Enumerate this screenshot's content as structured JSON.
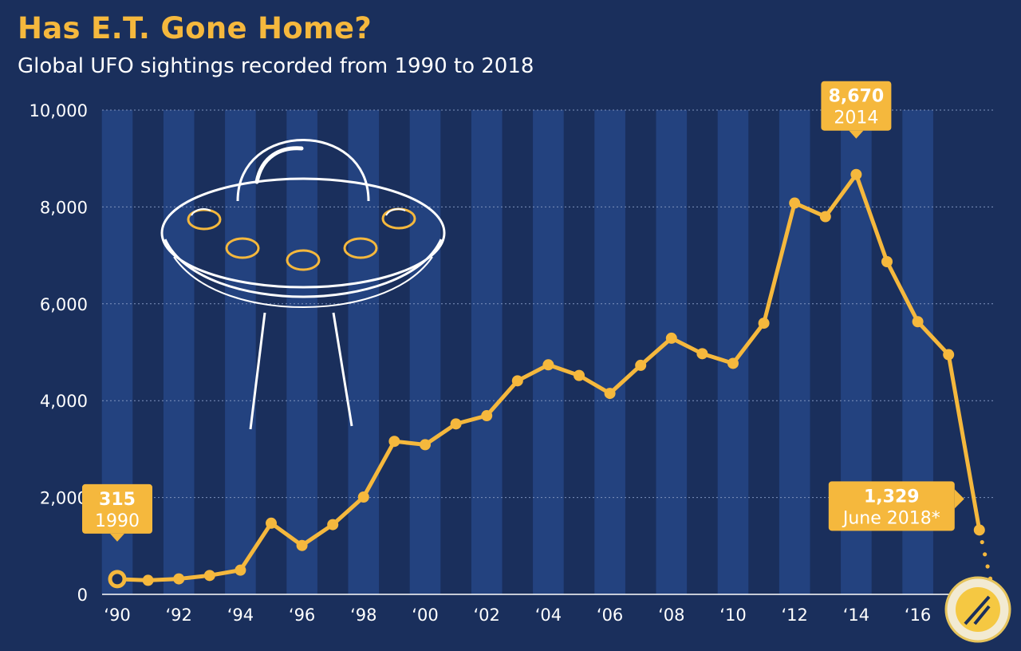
{
  "header": {
    "title": "Has E.T. Gone Home?",
    "subtitle": "Global UFO sightings recorded from 1990 to 2018"
  },
  "colors": {
    "background": "#1a2f5c",
    "stripe": "#23427f",
    "line": "#f5b83d",
    "callout": "#f5b83d",
    "title": "#f5b83d"
  },
  "icons": [
    "ufo-illustration-icon",
    "corner-logo-icon"
  ],
  "chart_data": {
    "type": "line",
    "title": "Has E.T. Gone Home?",
    "subtitle": "Global UFO sightings recorded from 1990 to 2018",
    "xlabel": "",
    "ylabel": "",
    "ylim": [
      0,
      10000
    ],
    "yticks": [
      0,
      2000,
      4000,
      6000,
      8000,
      10000
    ],
    "ytick_labels": [
      "0",
      "2,000",
      "4,000",
      "6,000",
      "8,000",
      "10,000"
    ],
    "xticks": [
      1990,
      1992,
      1994,
      1996,
      1998,
      2000,
      2002,
      2004,
      2006,
      2008,
      2010,
      2012,
      2014,
      2016
    ],
    "xtick_labels": [
      "‘90",
      "‘92",
      "‘94",
      "‘96",
      "‘98",
      "‘00",
      "‘02",
      "‘04",
      "‘06",
      "‘08",
      "‘10",
      "‘12",
      "‘14",
      "‘16"
    ],
    "grid": "horizontal",
    "series": [
      {
        "x": [
          1990,
          1991,
          1992,
          1993,
          1994,
          1995,
          1996,
          1997,
          1998,
          1999,
          2000,
          2001,
          2002,
          2003,
          2004,
          2005,
          2006,
          2007,
          2008,
          2009,
          2010,
          2011,
          2012,
          2013,
          2014,
          2015,
          2016,
          2017,
          2018
        ],
        "values": [
          315,
          290,
          320,
          390,
          500,
          1470,
          1010,
          1440,
          2010,
          3160,
          3090,
          3520,
          3690,
          4410,
          4740,
          4520,
          4150,
          4730,
          5290,
          4970,
          4770,
          5600,
          8080,
          7800,
          8670,
          6870,
          5630,
          4950,
          1329
        ]
      }
    ],
    "projection": {
      "x": [
        2018,
        2018.4
      ],
      "values": [
        1329,
        200
      ],
      "style": "dotted"
    },
    "annotations": [
      {
        "value": "315",
        "label": "1990",
        "x": 1990,
        "y": 315
      },
      {
        "value": "8,670",
        "label": "2014",
        "x": 2014,
        "y": 8670
      },
      {
        "value": "1,329",
        "label": "June 2018*",
        "x": 2018,
        "y": 1329
      }
    ]
  }
}
